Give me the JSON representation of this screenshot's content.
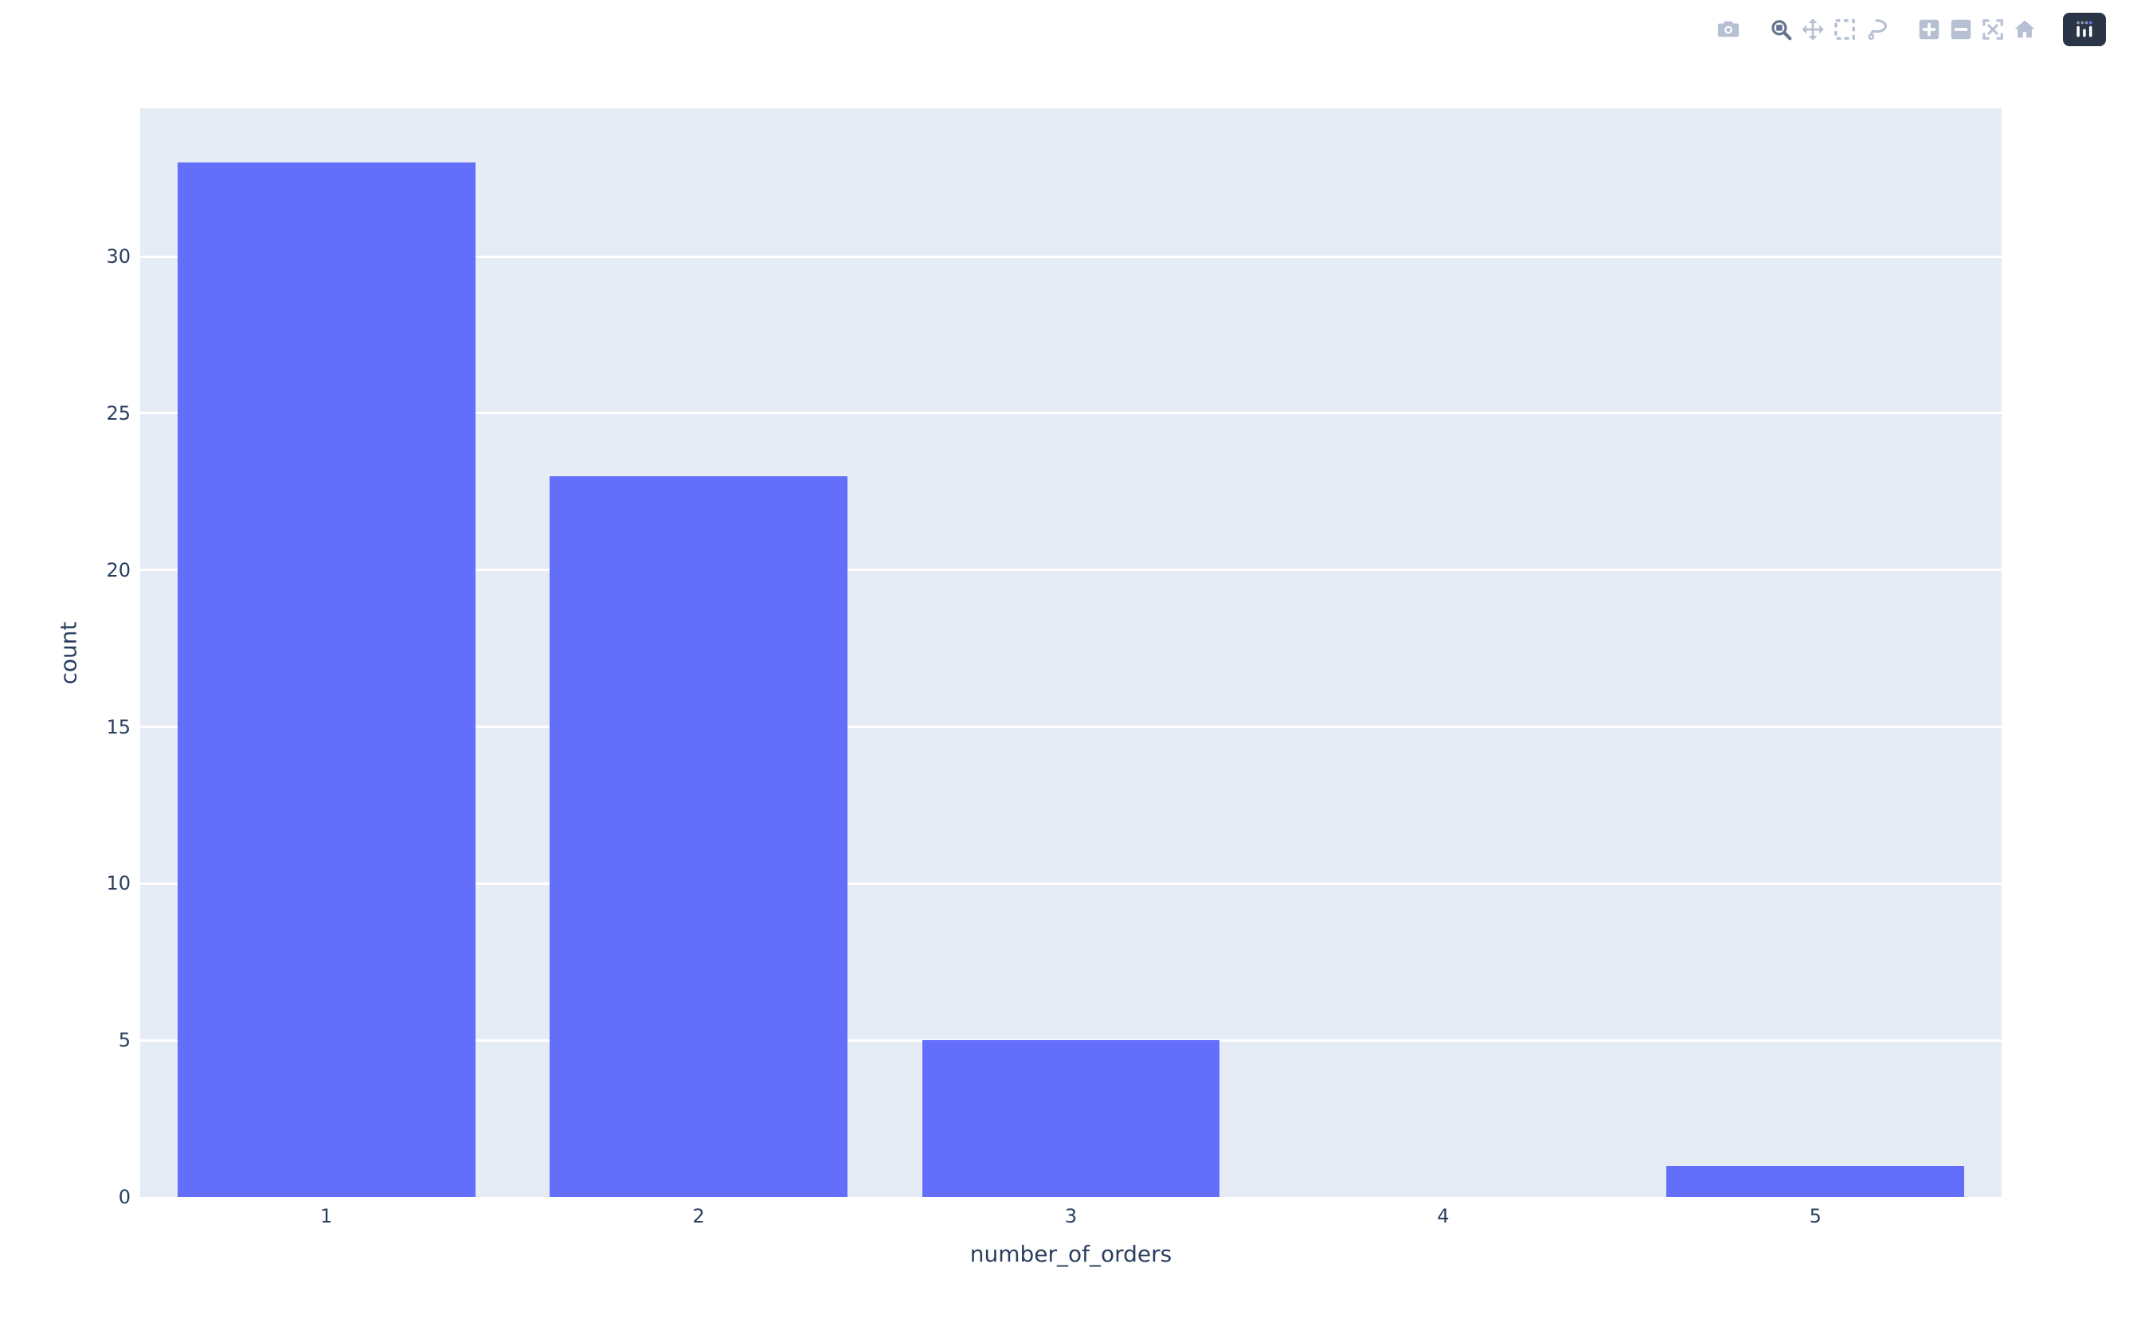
{
  "chart_data": {
    "type": "bar",
    "categories": [
      "1",
      "2",
      "3",
      "4",
      "5"
    ],
    "values": [
      33,
      23,
      5,
      0,
      1
    ],
    "xlabel": "number_of_orders",
    "ylabel": "count",
    "yticks": [
      0,
      5,
      10,
      15,
      20,
      25,
      30
    ],
    "ylim": [
      0,
      34.73
    ],
    "bar_width_frac": 0.8,
    "grid": true,
    "legend_position": "none",
    "colors": {
      "bar": "#636efa",
      "plot_background": "#e5ecf6",
      "gridline": "#ffffff",
      "text": "#2a3f5f",
      "paper_background": "#ffffff"
    }
  },
  "modebar": {
    "colors": {
      "inactive_icon": "#b7c0d2",
      "active_icon": "#64748f",
      "logo_background": "#2a3647",
      "logo_bar": "#ffffff",
      "logo_dot": "#8a93b2",
      "logo_dot_accent": "#6d78f0"
    },
    "groups": [
      [
        {
          "icon": "camera-icon",
          "active": false
        }
      ],
      [
        {
          "icon": "zoom-icon",
          "active": true
        },
        {
          "icon": "pan-icon",
          "active": false
        },
        {
          "icon": "box-select-icon",
          "active": false
        },
        {
          "icon": "lasso-select-icon",
          "active": false
        }
      ],
      [
        {
          "icon": "zoom-in-icon",
          "active": false
        },
        {
          "icon": "zoom-out-icon",
          "active": false
        },
        {
          "icon": "autoscale-icon",
          "active": false
        },
        {
          "icon": "home-icon",
          "active": false
        }
      ],
      [
        {
          "icon": "plotly-logo-icon",
          "active": false
        }
      ]
    ]
  }
}
